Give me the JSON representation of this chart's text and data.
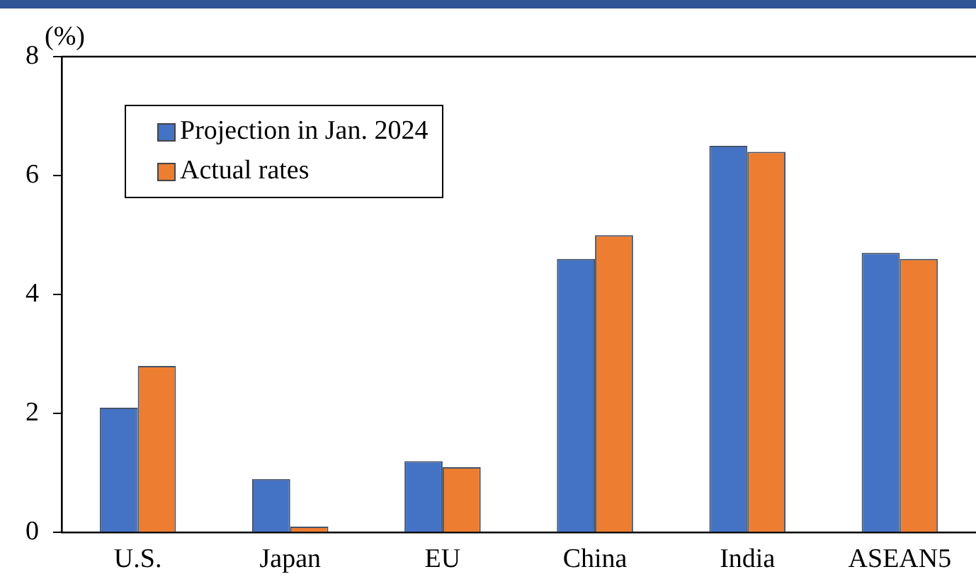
{
  "chart_data": {
    "type": "bar",
    "ylabel": "(%)",
    "categories": [
      "U.S.",
      "Japan",
      "EU",
      "China",
      "India",
      "ASEAN5"
    ],
    "series": [
      {
        "name": "Projection in Jan. 2024",
        "color": "#4472c4",
        "values": [
          2.1,
          0.9,
          1.2,
          4.6,
          6.5,
          4.7
        ]
      },
      {
        "name": "Actual rates",
        "color": "#ed7d31",
        "values": [
          2.8,
          0.1,
          1.1,
          5.0,
          6.4,
          4.6
        ]
      }
    ],
    "ylim": [
      0,
      8
    ],
    "yticks": [
      0,
      2,
      4,
      6,
      8
    ],
    "grid": false,
    "legend": "top left"
  }
}
